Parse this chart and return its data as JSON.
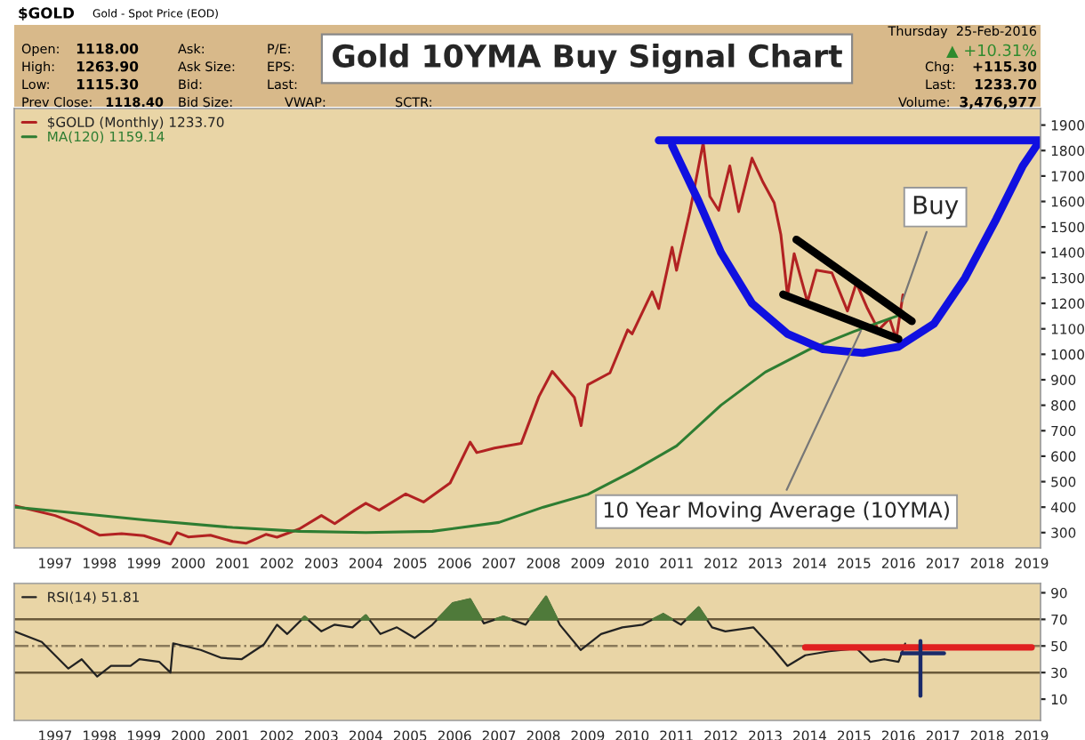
{
  "chart_data": [
    {
      "type": "line",
      "title": "Gold 10YMA Buy Signal Chart",
      "annotations": [
        "$GOLD",
        "Gold - Spot Price (EOD)",
        "Open:",
        "1118.00",
        "High:",
        "1263.90",
        "Low:",
        "1115.30",
        "Prev Close:",
        "1118.40",
        "Ask:",
        "Ask Size:",
        "Bid:",
        "Bid Size:",
        "P/E:",
        "EPS:",
        "Last:",
        "VWAP:",
        "SCTR:",
        "Thursday  25-Feb-2016",
        "▲ +10.31%",
        "Chg:",
        "+115.30",
        "Last:",
        "1233.70",
        "Volume:",
        "3,476,977",
        {
          "text": "Buy",
          "x": 2016.05,
          "y": 1190
        },
        {
          "text": "10 Year Moving Average (10YMA)",
          "x": 2015.2,
          "y": 1110
        }
      ],
      "xlim": [
        1996.08,
        2019.2
      ],
      "xticks": [
        1997,
        1998,
        1999,
        2000,
        2001,
        2002,
        2003,
        2004,
        2005,
        2006,
        2007,
        2008,
        2009,
        2010,
        2011,
        2012,
        2013,
        2014,
        2015,
        2016,
        2017,
        2018,
        2019
      ],
      "ylim": [
        240,
        1965
      ],
      "yticks": [
        300,
        400,
        500,
        600,
        700,
        800,
        900,
        1000,
        1100,
        1200,
        1300,
        1400,
        1500,
        1600,
        1700,
        1800,
        1900
      ],
      "legend": "top left",
      "series": [
        {
          "name": "$GOLD (Monthly) 1233.70",
          "color": "#b22222",
          "x": [
            1996.1,
            1997.0,
            1997.5,
            1998.0,
            1998.5,
            1999.0,
            1999.6,
            1999.75,
            2000.0,
            2000.5,
            2001.0,
            2001.3,
            2001.75,
            2002.0,
            2002.5,
            2003.0,
            2003.3,
            2003.75,
            2004.0,
            2004.3,
            2004.9,
            2005.3,
            2005.9,
            2006.35,
            2006.5,
            2006.9,
            2007.5,
            2007.9,
            2008.2,
            2008.7,
            2008.85,
            2009.0,
            2009.5,
            2009.9,
            2010.0,
            2010.45,
            2010.6,
            2010.9,
            2011.0,
            2011.3,
            2011.6,
            2011.75,
            2011.95,
            2012.2,
            2012.4,
            2012.7,
            2012.95,
            2013.2,
            2013.35,
            2013.5,
            2013.65,
            2013.95,
            2014.15,
            2014.5,
            2014.85,
            2015.05,
            2015.3,
            2015.55,
            2015.8,
            2015.95,
            2016.1
          ],
          "values": [
            405,
            367,
            334,
            290,
            296,
            288,
            255,
            300,
            283,
            290,
            265,
            258,
            293,
            282,
            314,
            367,
            335,
            388,
            415,
            388,
            452,
            420,
            495,
            655,
            614,
            632,
            650,
            834,
            933,
            830,
            720,
            880,
            927,
            1096,
            1080,
            1245,
            1180,
            1420,
            1330,
            1560,
            1830,
            1620,
            1565,
            1740,
            1560,
            1770,
            1675,
            1595,
            1470,
            1230,
            1395,
            1205,
            1330,
            1320,
            1170,
            1280,
            1180,
            1095,
            1140,
            1060,
            1233.7
          ]
        },
        {
          "name": "MA(120) 1159.14",
          "color": "#2e7d32",
          "x": [
            1996.1,
            1997,
            1999,
            2001,
            2002.5,
            2004,
            2005.5,
            2007,
            2008,
            2009,
            2010,
            2011,
            2012,
            2013,
            2014,
            2015,
            2016.1
          ],
          "values": [
            400,
            385,
            350,
            320,
            305,
            300,
            305,
            340,
            400,
            450,
            540,
            640,
            800,
            930,
            1020,
            1090,
            1159
          ]
        },
        {
          "color": "#1010e0",
          "x": [
            2010.6,
            2019.2
          ],
          "values": [
            1840,
            1840
          ]
        },
        {
          "color": "#1010e0",
          "x": [
            2010.9,
            2011.5,
            2012.0,
            2012.7,
            2013.5,
            2014.3,
            2015.2,
            2016.0,
            2016.8,
            2017.5,
            2018.2,
            2018.8,
            2019.15
          ],
          "values": [
            1820,
            1600,
            1400,
            1200,
            1080,
            1020,
            1005,
            1030,
            1120,
            1300,
            1530,
            1740,
            1830
          ]
        },
        {
          "color": "#000000",
          "x": [
            2013.7,
            2016.3
          ],
          "values": [
            1450,
            1130
          ]
        },
        {
          "color": "#000000",
          "x": [
            2013.4,
            2016.0
          ],
          "values": [
            1235,
            1060
          ]
        }
      ]
    },
    {
      "type": "line",
      "xlim": [
        1996.08,
        2019.2
      ],
      "xticks": [
        1997,
        1998,
        1999,
        2000,
        2001,
        2002,
        2003,
        2004,
        2005,
        2006,
        2007,
        2008,
        2009,
        2010,
        2011,
        2012,
        2013,
        2014,
        2015,
        2016,
        2017,
        2018,
        2019
      ],
      "ylim": [
        -6,
        97
      ],
      "yticks": [
        10,
        30,
        50,
        70,
        90
      ],
      "legend": "top left",
      "ref_lines": [
        {
          "axis": "y",
          "value": 70,
          "color": "#6b5a3a",
          "line_style": "solid"
        },
        {
          "axis": "y",
          "value": 30,
          "color": "#6b5a3a",
          "line_style": "solid"
        },
        {
          "axis": "y",
          "value": 50,
          "color": "#8a7a5a",
          "line_style": "dashed"
        }
      ],
      "series": [
        {
          "name": "RSI(14) 51.81",
          "color": "#222222",
          "x": [
            1996.08,
            1996.7,
            1997.0,
            1997.3,
            1997.6,
            1997.95,
            1998.26,
            1998.7,
            1998.9,
            1999.35,
            1999.6,
            1999.66,
            2000.28,
            2000.75,
            2001.2,
            2001.7,
            2002.0,
            2002.23,
            2002.62,
            2003.0,
            2003.3,
            2003.7,
            2004.0,
            2004.33,
            2004.7,
            2005.1,
            2005.5,
            2005.96,
            2006.35,
            2006.66,
            2007.1,
            2007.6,
            2008.06,
            2008.37,
            2008.84,
            2009.3,
            2009.78,
            2010.24,
            2010.7,
            2011.1,
            2011.5,
            2011.8,
            2012.1,
            2012.73,
            2013.2,
            2013.5,
            2013.9,
            2014.44,
            2015.06,
            2015.37,
            2015.68,
            2016.0,
            2016.15
          ],
          "values": [
            61,
            53,
            43,
            33,
            40,
            27,
            35,
            35,
            40,
            38,
            30,
            52,
            47,
            41,
            40,
            51,
            66,
            59,
            72,
            61,
            66,
            64,
            73,
            59,
            64,
            56,
            66,
            82,
            85,
            67,
            72,
            66,
            87,
            66,
            47,
            59,
            64,
            66,
            74,
            66,
            79,
            64,
            61,
            64,
            47,
            35,
            43,
            46,
            48,
            38,
            40,
            38,
            51.81
          ]
        },
        {
          "color": "#e02020",
          "x": [
            2013.9,
            2019.0
          ],
          "values": [
            49,
            49
          ]
        }
      ]
    }
  ]
}
